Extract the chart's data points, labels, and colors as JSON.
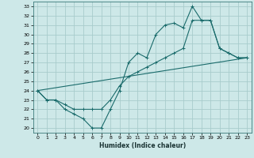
{
  "xlabel": "Humidex (Indice chaleur)",
  "bg_color": "#cde8e8",
  "grid_color": "#a8cccc",
  "line_color": "#1a6b6b",
  "xlim": [
    -0.5,
    23.5
  ],
  "ylim": [
    19.5,
    33.5
  ],
  "xticks": [
    0,
    1,
    2,
    3,
    4,
    5,
    6,
    7,
    8,
    9,
    10,
    11,
    12,
    13,
    14,
    15,
    16,
    17,
    18,
    19,
    20,
    21,
    22,
    23
  ],
  "yticks": [
    20,
    21,
    22,
    23,
    24,
    25,
    26,
    27,
    28,
    29,
    30,
    31,
    32,
    33
  ],
  "line1_x": [
    0,
    1,
    2,
    3,
    4,
    5,
    6,
    7,
    8,
    9,
    10,
    11,
    12,
    13,
    14,
    15,
    16,
    17,
    18,
    19,
    20,
    21,
    22,
    23
  ],
  "line1_y": [
    24,
    23,
    23,
    22,
    21.5,
    21,
    20,
    20,
    22,
    24,
    27,
    28,
    27.5,
    30,
    31,
    31.2,
    30.7,
    33,
    31.5,
    31.5,
    28.5,
    28,
    27.5,
    27.5
  ],
  "line2_x": [
    0,
    1,
    2,
    3,
    4,
    5,
    6,
    7,
    8,
    9,
    10,
    11,
    12,
    13,
    14,
    15,
    16,
    17,
    18,
    19,
    20,
    21,
    22,
    23
  ],
  "line2_y": [
    24,
    23,
    23,
    22.5,
    22,
    22,
    22,
    22,
    23,
    24.5,
    25.5,
    26,
    26.5,
    27,
    27.5,
    28,
    28.5,
    31.5,
    31.5,
    31.5,
    28.5,
    28,
    27.5,
    27.5
  ],
  "line3_x": [
    0,
    23
  ],
  "line3_y": [
    24,
    27.5
  ]
}
